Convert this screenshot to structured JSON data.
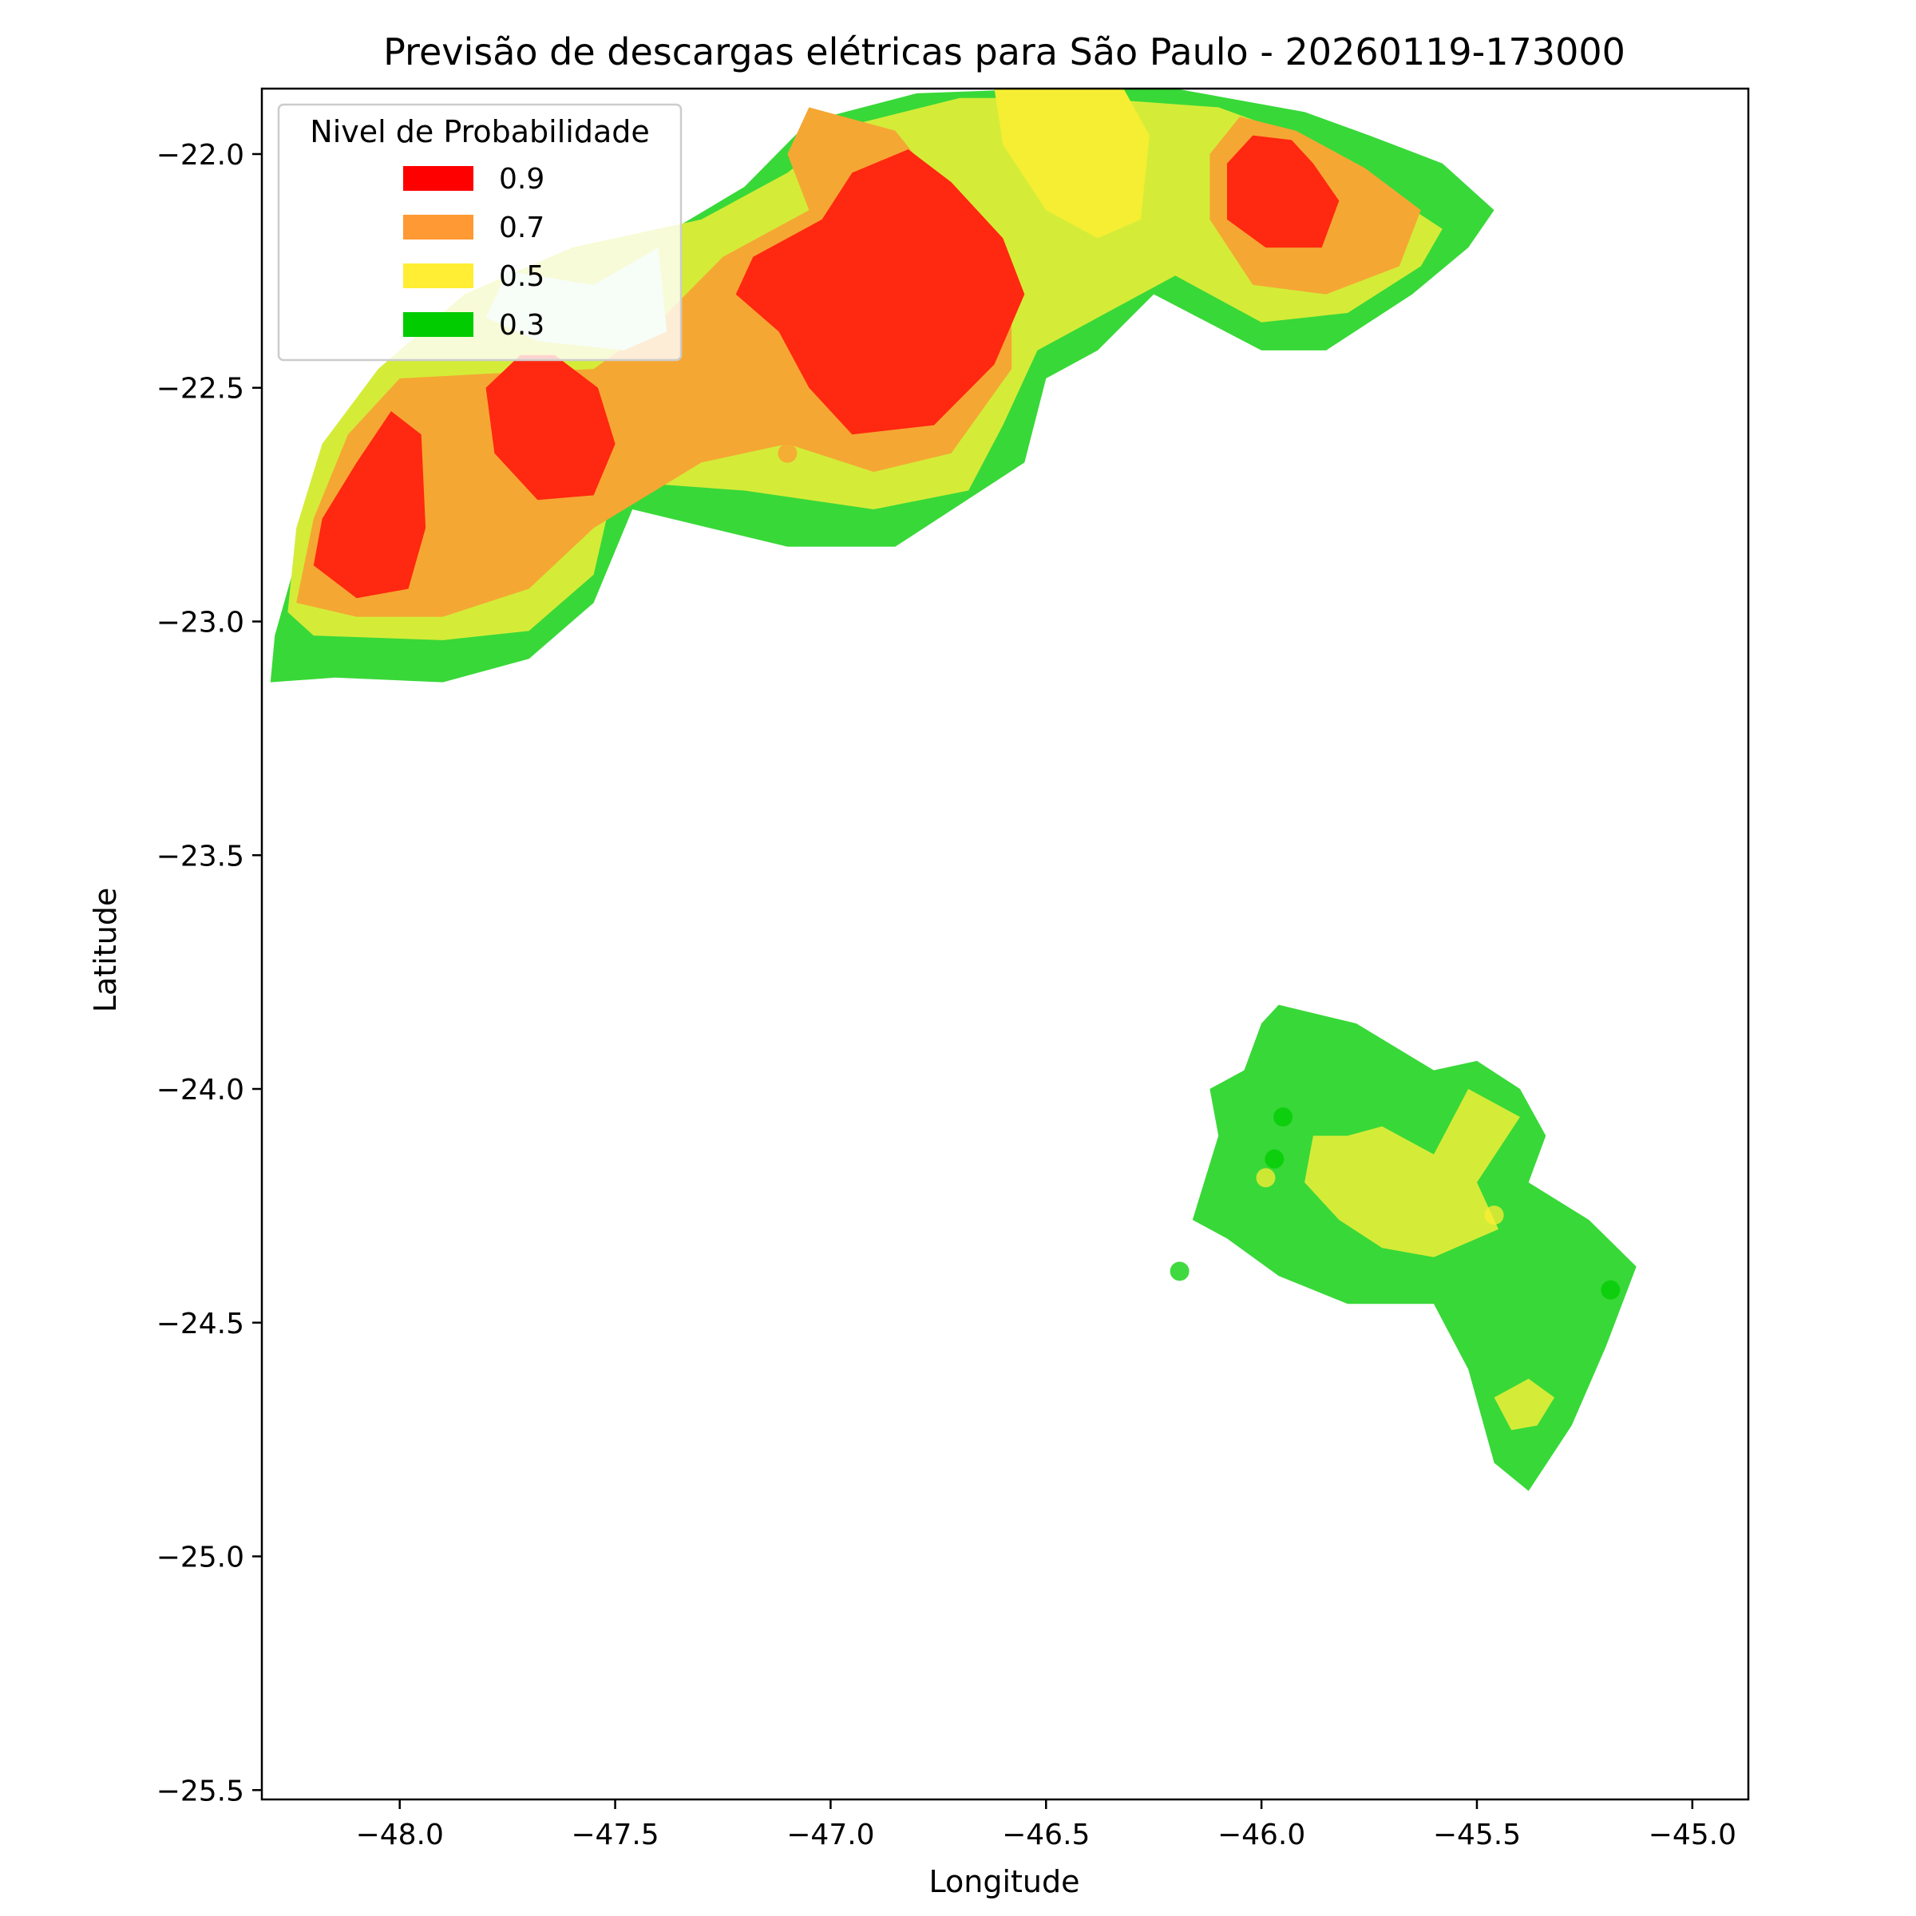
{
  "chart_data": {
    "type": "heatmap",
    "title": "Previsão de descargas elétricas para São Paulo - 20260119-173000",
    "xlabel": "Longitude",
    "ylabel": "Latitude",
    "xlim": [
      -48.32,
      -44.87
    ],
    "ylim": [
      -25.52,
      -21.86
    ],
    "x_ticks": [
      -48.0,
      -47.5,
      -47.0,
      -46.5,
      -46.0,
      -45.5,
      -45.0
    ],
    "x_tick_labels": [
      "−48.0",
      "−47.5",
      "−47.0",
      "−46.5",
      "−46.0",
      "−45.5",
      "−45.0"
    ],
    "y_ticks": [
      -22.0,
      -22.5,
      -23.0,
      -23.5,
      -24.0,
      -24.5,
      -25.0,
      -25.5
    ],
    "y_tick_labels": [
      "−22.0",
      "−22.5",
      "−23.0",
      "−23.5",
      "−24.0",
      "−24.5",
      "−25.0",
      "−25.5"
    ],
    "grid": false,
    "legend": {
      "title": "Nivel de Probabilidade",
      "placement": "top-left",
      "entries": [
        {
          "label": "0.9",
          "color": "#ff0000"
        },
        {
          "label": "0.7",
          "color": "#ff9933"
        },
        {
          "label": "0.5",
          "color": "#ffee33"
        },
        {
          "label": "0.3",
          "color": "#00cc00"
        }
      ]
    },
    "fill_colors": {
      "0.3": "#38d838",
      "0.5": "#d4ec38",
      "0.6": "#f5ee33",
      "0.7": "#f5a733",
      "0.9": "#ff2810",
      "light": "#d8f5d8"
    },
    "regions": [
      {
        "name": "north-band-0.3",
        "level": "0.3",
        "points": [
          [
            -47.46,
            -22.76
          ],
          [
            -47.1,
            -22.84
          ],
          [
            -46.85,
            -22.84
          ],
          [
            -46.55,
            -22.66
          ],
          [
            -46.5,
            -22.48
          ],
          [
            -46.38,
            -22.42
          ],
          [
            -46.25,
            -22.3
          ],
          [
            -46.0,
            -22.42
          ],
          [
            -45.85,
            -22.42
          ],
          [
            -45.65,
            -22.3
          ],
          [
            -45.52,
            -22.2
          ],
          [
            -45.46,
            -22.12
          ],
          [
            -45.58,
            -22.02
          ],
          [
            -45.75,
            -21.96
          ],
          [
            -45.9,
            -21.91
          ],
          [
            -46.2,
            -21.86
          ],
          [
            -46.5,
            -21.86
          ],
          [
            -46.8,
            -21.87
          ],
          [
            -47.05,
            -21.93
          ],
          [
            -47.2,
            -22.07
          ],
          [
            -47.4,
            -22.18
          ],
          [
            -47.6,
            -22.22
          ],
          [
            -47.8,
            -22.28
          ],
          [
            -48.0,
            -22.42
          ],
          [
            -48.12,
            -22.58
          ],
          [
            -48.2,
            -22.75
          ],
          [
            -48.25,
            -22.9
          ],
          [
            -48.29,
            -23.03
          ],
          [
            -48.3,
            -23.13
          ],
          [
            -48.15,
            -23.12
          ],
          [
            -47.9,
            -23.13
          ],
          [
            -47.7,
            -23.08
          ],
          [
            -47.55,
            -22.96
          ],
          [
            -47.46,
            -22.76
          ]
        ]
      },
      {
        "name": "north-band-0.5",
        "level": "0.5",
        "points": [
          [
            -47.5,
            -22.7
          ],
          [
            -47.2,
            -22.72
          ],
          [
            -46.9,
            -22.76
          ],
          [
            -46.68,
            -22.72
          ],
          [
            -46.6,
            -22.58
          ],
          [
            -46.52,
            -22.42
          ],
          [
            -46.36,
            -22.34
          ],
          [
            -46.2,
            -22.26
          ],
          [
            -46.0,
            -22.36
          ],
          [
            -45.8,
            -22.34
          ],
          [
            -45.63,
            -22.24
          ],
          [
            -45.58,
            -22.16
          ],
          [
            -45.68,
            -22.1
          ],
          [
            -45.86,
            -21.98
          ],
          [
            -46.1,
            -21.9
          ],
          [
            -46.4,
            -21.88
          ],
          [
            -46.7,
            -21.88
          ],
          [
            -46.96,
            -21.94
          ],
          [
            -47.1,
            -22.04
          ],
          [
            -47.3,
            -22.14
          ],
          [
            -47.6,
            -22.2
          ],
          [
            -47.85,
            -22.3
          ],
          [
            -48.05,
            -22.46
          ],
          [
            -48.18,
            -22.62
          ],
          [
            -48.24,
            -22.8
          ],
          [
            -48.26,
            -22.98
          ],
          [
            -48.2,
            -23.03
          ],
          [
            -47.9,
            -23.04
          ],
          [
            -47.7,
            -23.02
          ],
          [
            -47.55,
            -22.9
          ],
          [
            -47.5,
            -22.7
          ]
        ]
      },
      {
        "name": "north-band-0.6",
        "level": "0.6",
        "points": [
          [
            -46.62,
            -21.86
          ],
          [
            -46.32,
            -21.86
          ],
          [
            -46.26,
            -21.96
          ],
          [
            -46.28,
            -22.14
          ],
          [
            -46.38,
            -22.18
          ],
          [
            -46.5,
            -22.12
          ],
          [
            -46.6,
            -21.98
          ],
          [
            -46.62,
            -21.86
          ]
        ]
      },
      {
        "name": "north-band-0.7",
        "level": "0.7",
        "points": [
          [
            -47.55,
            -22.8
          ],
          [
            -47.3,
            -22.66
          ],
          [
            -47.1,
            -22.62
          ],
          [
            -46.9,
            -22.68
          ],
          [
            -46.72,
            -22.64
          ],
          [
            -46.58,
            -22.46
          ],
          [
            -46.58,
            -22.24
          ],
          [
            -46.72,
            -22.1
          ],
          [
            -46.85,
            -21.95
          ],
          [
            -47.05,
            -21.9
          ],
          [
            -47.1,
            -22.0
          ],
          [
            -47.05,
            -22.12
          ],
          [
            -47.25,
            -22.22
          ],
          [
            -47.4,
            -22.36
          ],
          [
            -47.55,
            -22.46
          ],
          [
            -47.8,
            -22.47
          ],
          [
            -48.0,
            -22.48
          ],
          [
            -48.12,
            -22.6
          ],
          [
            -48.2,
            -22.78
          ],
          [
            -48.24,
            -22.96
          ],
          [
            -48.1,
            -22.99
          ],
          [
            -47.9,
            -22.99
          ],
          [
            -47.7,
            -22.93
          ],
          [
            -47.55,
            -22.8
          ]
        ]
      },
      {
        "name": "north-band-0.7-east",
        "level": "0.7",
        "points": [
          [
            -46.05,
            -21.92
          ],
          [
            -45.92,
            -21.95
          ],
          [
            -45.76,
            -22.03
          ],
          [
            -45.63,
            -22.12
          ],
          [
            -45.68,
            -22.24
          ],
          [
            -45.85,
            -22.3
          ],
          [
            -46.02,
            -22.28
          ],
          [
            -46.12,
            -22.14
          ],
          [
            -46.12,
            -22.0
          ],
          [
            -46.05,
            -21.92
          ]
        ]
      },
      {
        "name": "core-0.9-central",
        "level": "0.9",
        "points": [
          [
            -46.82,
            -21.99
          ],
          [
            -46.72,
            -22.06
          ],
          [
            -46.6,
            -22.18
          ],
          [
            -46.55,
            -22.3
          ],
          [
            -46.62,
            -22.45
          ],
          [
            -46.76,
            -22.58
          ],
          [
            -46.95,
            -22.6
          ],
          [
            -47.05,
            -22.5
          ],
          [
            -47.12,
            -22.38
          ],
          [
            -47.22,
            -22.3
          ],
          [
            -47.18,
            -22.22
          ],
          [
            -47.02,
            -22.14
          ],
          [
            -46.95,
            -22.04
          ],
          [
            -46.82,
            -21.99
          ]
        ]
      },
      {
        "name": "core-0.9-west",
        "level": "0.9",
        "points": [
          [
            -47.64,
            -22.43
          ],
          [
            -47.54,
            -22.5
          ],
          [
            -47.5,
            -22.62
          ],
          [
            -47.55,
            -22.73
          ],
          [
            -47.68,
            -22.74
          ],
          [
            -47.78,
            -22.64
          ],
          [
            -47.8,
            -22.5
          ],
          [
            -47.72,
            -22.43
          ],
          [
            -47.64,
            -22.43
          ]
        ]
      },
      {
        "name": "core-0.9-far-west",
        "level": "0.9",
        "points": [
          [
            -48.02,
            -22.55
          ],
          [
            -47.95,
            -22.6
          ],
          [
            -47.94,
            -22.8
          ],
          [
            -47.98,
            -22.93
          ],
          [
            -48.1,
            -22.95
          ],
          [
            -48.2,
            -22.88
          ],
          [
            -48.18,
            -22.78
          ],
          [
            -48.1,
            -22.66
          ],
          [
            -48.02,
            -22.55
          ]
        ]
      },
      {
        "name": "core-0.9-east",
        "level": "0.9",
        "points": [
          [
            -45.93,
            -21.97
          ],
          [
            -45.88,
            -22.02
          ],
          [
            -45.82,
            -22.1
          ],
          [
            -45.86,
            -22.2
          ],
          [
            -45.99,
            -22.2
          ],
          [
            -46.08,
            -22.14
          ],
          [
            -46.08,
            -22.02
          ],
          [
            -46.02,
            -21.96
          ],
          [
            -45.93,
            -21.97
          ]
        ]
      },
      {
        "name": "south-band-0.3",
        "level": "0.3",
        "points": [
          [
            -45.96,
            -23.82
          ],
          [
            -45.78,
            -23.86
          ],
          [
            -45.6,
            -23.96
          ],
          [
            -45.5,
            -23.94
          ],
          [
            -45.4,
            -24.0
          ],
          [
            -45.34,
            -24.1
          ],
          [
            -45.38,
            -24.2
          ],
          [
            -45.24,
            -24.28
          ],
          [
            -45.13,
            -24.38
          ],
          [
            -45.2,
            -24.55
          ],
          [
            -45.28,
            -24.72
          ],
          [
            -45.38,
            -24.86
          ],
          [
            -45.46,
            -24.8
          ],
          [
            -45.52,
            -24.6
          ],
          [
            -45.6,
            -24.46
          ],
          [
            -45.8,
            -24.46
          ],
          [
            -45.96,
            -24.4
          ],
          [
            -46.08,
            -24.32
          ],
          [
            -46.16,
            -24.28
          ],
          [
            -46.1,
            -24.1
          ],
          [
            -46.12,
            -24.0
          ],
          [
            -46.04,
            -23.96
          ],
          [
            -46.0,
            -23.86
          ],
          [
            -45.96,
            -23.82
          ]
        ]
      },
      {
        "name": "south-band-0.5",
        "level": "0.5",
        "points": [
          [
            -45.8,
            -24.1
          ],
          [
            -45.72,
            -24.08
          ],
          [
            -45.6,
            -24.14
          ],
          [
            -45.52,
            -24.0
          ],
          [
            -45.4,
            -24.06
          ],
          [
            -45.5,
            -24.2
          ],
          [
            -45.45,
            -24.3
          ],
          [
            -45.6,
            -24.36
          ],
          [
            -45.72,
            -24.34
          ],
          [
            -45.82,
            -24.28
          ],
          [
            -45.9,
            -24.2
          ],
          [
            -45.88,
            -24.1
          ],
          [
            -45.8,
            -24.1
          ]
        ]
      },
      {
        "name": "south-band-0.5-tip",
        "level": "0.5",
        "points": [
          [
            -45.46,
            -24.66
          ],
          [
            -45.38,
            -24.62
          ],
          [
            -45.32,
            -24.66
          ],
          [
            -45.36,
            -24.72
          ],
          [
            -45.42,
            -24.73
          ],
          [
            -45.46,
            -24.66
          ]
        ]
      },
      {
        "name": "light-patch",
        "level": "light",
        "points": [
          [
            -47.75,
            -22.25
          ],
          [
            -47.55,
            -22.28
          ],
          [
            -47.4,
            -22.2
          ],
          [
            -47.38,
            -22.38
          ],
          [
            -47.48,
            -22.42
          ],
          [
            -47.68,
            -22.4
          ],
          [
            -47.8,
            -22.35
          ],
          [
            -47.75,
            -22.25
          ]
        ]
      }
    ],
    "markers": [
      {
        "lon": -47.1,
        "lat": -22.64,
        "level": "0.7"
      },
      {
        "lon": -45.95,
        "lat": -24.06,
        "level": "0.3"
      },
      {
        "lon": -45.97,
        "lat": -24.15,
        "level": "0.3"
      },
      {
        "lon": -45.99,
        "lat": -24.19,
        "level": "0.5"
      },
      {
        "lon": -46.19,
        "lat": -24.39,
        "level": "0.3"
      },
      {
        "lon": -45.46,
        "lat": -24.27,
        "level": "0.5"
      },
      {
        "lon": -45.19,
        "lat": -24.43,
        "level": "0.3"
      }
    ]
  }
}
